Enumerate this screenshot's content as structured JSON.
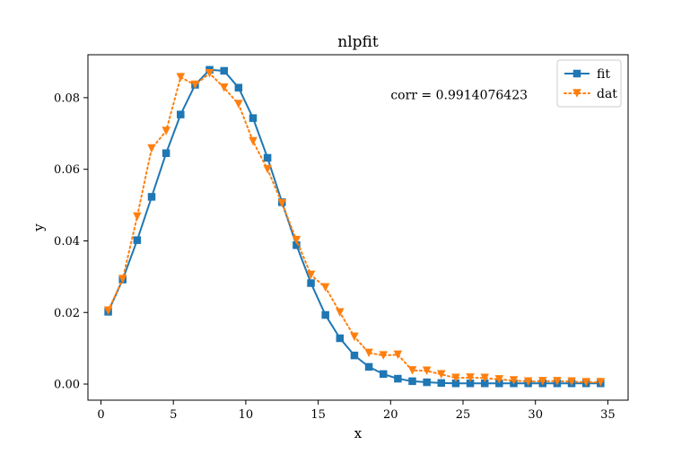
{
  "chart_data": {
    "type": "line",
    "title": "nlpfit",
    "xlabel": "x",
    "ylabel": "y",
    "xlim": [
      -0.9,
      36.4
    ],
    "ylim": [
      -0.0045,
      0.092
    ],
    "xticks": [
      0,
      5,
      10,
      15,
      20,
      25,
      30,
      35
    ],
    "yticks": [
      0.0,
      0.02,
      0.04,
      0.06,
      0.08
    ],
    "xtick_labels": [
      "0",
      "5",
      "10",
      "15",
      "20",
      "25",
      "30",
      "35"
    ],
    "ytick_labels": [
      "0.00",
      "0.02",
      "0.04",
      "0.06",
      "0.08"
    ],
    "grid": false,
    "legend_position": "upper right",
    "annotation": {
      "text": "corr = 0.9914076423",
      "x": 20.0,
      "y": 0.0806
    },
    "x": [
      0.5,
      1.5,
      2.5,
      3.5,
      4.5,
      5.5,
      6.5,
      7.5,
      8.5,
      9.5,
      10.5,
      11.5,
      12.5,
      13.5,
      14.5,
      15.5,
      16.5,
      17.5,
      18.5,
      19.5,
      20.5,
      21.5,
      22.5,
      23.5,
      24.5,
      25.5,
      26.5,
      27.5,
      28.5,
      29.5,
      30.5,
      31.5,
      32.5,
      33.5,
      34.5
    ],
    "series": [
      {
        "name": "fit",
        "color": "#1f77b4",
        "marker": "square",
        "line_style": "solid",
        "values": [
          0.0202,
          0.0292,
          0.0402,
          0.0523,
          0.0645,
          0.0753,
          0.0836,
          0.0878,
          0.0875,
          0.0828,
          0.0743,
          0.0632,
          0.0508,
          0.0388,
          0.0282,
          0.0193,
          0.0128,
          0.008,
          0.0048,
          0.0028,
          0.0015,
          0.0008,
          0.0005,
          0.0003,
          0.0002,
          0.0002,
          0.0002,
          0.0002,
          0.0002,
          0.0002,
          0.0002,
          0.0002,
          0.0002,
          0.0002,
          0.0002
        ]
      },
      {
        "name": "dat",
        "color": "#ff7f0e",
        "marker": "triangle-down",
        "line_style": "dotted",
        "values": [
          0.0205,
          0.0293,
          0.0468,
          0.0658,
          0.0707,
          0.0857,
          0.0836,
          0.0868,
          0.0828,
          0.0782,
          0.0678,
          0.06,
          0.0505,
          0.0402,
          0.0305,
          0.027,
          0.02,
          0.0132,
          0.0087,
          0.008,
          0.0082,
          0.0038,
          0.0037,
          0.0027,
          0.0017,
          0.0018,
          0.0017,
          0.0013,
          0.001,
          0.0007,
          0.0008,
          0.0008,
          0.0007,
          0.0005,
          0.0005
        ]
      }
    ]
  }
}
